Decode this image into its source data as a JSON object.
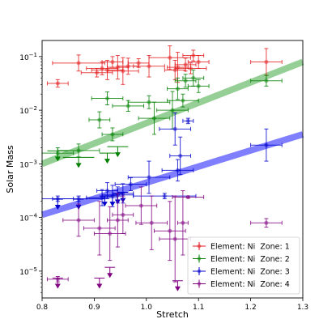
{
  "chart_data": {
    "type": "scatter",
    "xlabel": "Stretch",
    "ylabel": "Solar Mass",
    "xlim": [
      0.8,
      1.3
    ],
    "ylim_log10": [
      -5.5,
      -0.7
    ],
    "yscale": "log",
    "x_ticks": [
      {
        "value": 0.8,
        "label": "0.8"
      },
      {
        "value": 0.9,
        "label": "0.9"
      },
      {
        "value": 1.0,
        "label": "1.0"
      },
      {
        "value": 1.1,
        "label": "1.1"
      },
      {
        "value": 1.2,
        "label": "1.2"
      },
      {
        "value": 1.3,
        "label": "1.3"
      }
    ],
    "y_ticks": [
      {
        "exp": -5,
        "base": "10",
        "power": "−5"
      },
      {
        "exp": -4,
        "base": "10",
        "power": "−4"
      },
      {
        "exp": -3,
        "base": "10",
        "power": "−3"
      },
      {
        "exp": -2,
        "base": "10",
        "power": "−2"
      },
      {
        "exp": -1,
        "base": "10",
        "power": "−1"
      }
    ],
    "legend_position": "lower-right",
    "grid": false,
    "trend_lines": [
      {
        "color": "#2ca02c",
        "x": [
          0.8,
          1.3
        ],
        "log10_y": [
          -3.0,
          -1.1
        ]
      },
      {
        "color": "#0000ff",
        "x": [
          0.8,
          1.3
        ],
        "log10_y": [
          -3.95,
          -2.45
        ]
      }
    ],
    "series": [
      {
        "name": "Element: Ni  Zone: 1",
        "color": "#e41a1c",
        "points": [
          {
            "x": 0.83,
            "log10_y": -1.5,
            "xerr": 0.02,
            "yerr": 0.07
          },
          {
            "x": 0.87,
            "log10_y": -1.12,
            "xerr": 0.05,
            "yerr": 0.15
          },
          {
            "x": 0.905,
            "log10_y": -1.3,
            "xerr": 0.03,
            "yerr": 0.08
          },
          {
            "x": 0.915,
            "log10_y": -1.22,
            "xerr": 0.03,
            "yerr": 0.12
          },
          {
            "x": 0.925,
            "log10_y": -1.25,
            "xerr": 0.03,
            "yerr": 0.18
          },
          {
            "x": 0.935,
            "log10_y": -1.1,
            "xerr": 0.02,
            "yerr": 0.1
          },
          {
            "x": 0.945,
            "log10_y": -1.2,
            "xerr": 0.02,
            "yerr": 0.22
          },
          {
            "x": 0.955,
            "log10_y": -1.27,
            "xerr": 0.03,
            "yerr": 0.25
          },
          {
            "x": 0.965,
            "log10_y": -1.18,
            "xerr": 0.02,
            "yerr": 0.15
          },
          {
            "x": 0.985,
            "log10_y": -1.12,
            "xerr": 0.02,
            "yerr": 0.08
          },
          {
            "x": 1.005,
            "log10_y": -1.18,
            "xerr": 0.03,
            "yerr": 0.2
          },
          {
            "x": 1.045,
            "log10_y": -1.02,
            "xerr": 0.04,
            "yerr": 0.22
          },
          {
            "x": 1.055,
            "log10_y": -1.25,
            "xerr": 0.02,
            "yerr": 0.18
          },
          {
            "x": 1.06,
            "log10_y": -1.2,
            "xerr": 0.02,
            "yerr": 0.28
          },
          {
            "x": 1.075,
            "log10_y": -1.15,
            "xerr": 0.02,
            "yerr": 0.12
          },
          {
            "x": 1.085,
            "log10_y": -1.22,
            "xerr": 0.03,
            "yerr": 0.1
          },
          {
            "x": 1.09,
            "log10_y": -0.98,
            "xerr": 0.02,
            "yerr": 0.1
          },
          {
            "x": 1.1,
            "log10_y": -1.1,
            "xerr": 0.02,
            "yerr": 0.12
          },
          {
            "x": 1.23,
            "log10_y": -1.1,
            "xerr": 0.03,
            "yerr": 0.25
          }
        ]
      },
      {
        "name": "Element: Ni  Zone: 2",
        "color": "#008000",
        "points": [
          {
            "x": 0.83,
            "log10_y": -2.8,
            "xerr": 0.03,
            "yerr": 0.1
          },
          {
            "x": 0.87,
            "log10_y": -2.75,
            "xerr": 0.04,
            "yerr": 0.12
          },
          {
            "x": 0.91,
            "log10_y": -2.18,
            "xerr": 0.02,
            "yerr": 0.15
          },
          {
            "x": 0.925,
            "log10_y": -1.78,
            "xerr": 0.03,
            "yerr": 0.12
          },
          {
            "x": 0.935,
            "log10_y": -2.45,
            "xerr": 0.02,
            "yerr": 0.12
          },
          {
            "x": 0.965,
            "log10_y": -1.92,
            "xerr": 0.03,
            "yerr": 0.1
          },
          {
            "x": 1.005,
            "log10_y": -1.85,
            "xerr": 0.04,
            "yerr": 0.12
          },
          {
            "x": 1.015,
            "log10_y": -2.15,
            "xerr": 0.03,
            "yerr": 0.3
          },
          {
            "x": 1.05,
            "log10_y": -2.0,
            "xerr": 0.03,
            "yerr": 0.35
          },
          {
            "x": 1.06,
            "log10_y": -1.6,
            "xerr": 0.02,
            "yerr": 0.2
          },
          {
            "x": 1.07,
            "log10_y": -1.82,
            "xerr": 0.03,
            "yerr": 0.12
          },
          {
            "x": 1.075,
            "log10_y": -1.45,
            "xerr": 0.02,
            "yerr": 0.12
          },
          {
            "x": 1.09,
            "log10_y": -1.4,
            "xerr": 0.02,
            "yerr": 0.15
          },
          {
            "x": 1.1,
            "log10_y": -1.55,
            "xerr": 0.02,
            "yerr": 0.12
          },
          {
            "x": 1.23,
            "log10_y": -1.45,
            "xerr": 0.03,
            "yerr": 0.1
          }
        ],
        "upper_limits": [
          {
            "x": 0.83,
            "log10_y": -2.88,
            "xerr": 0.02
          },
          {
            "x": 0.87,
            "log10_y": -3.0,
            "xerr": 0.03
          },
          {
            "x": 0.925,
            "log10_y": -2.92,
            "xerr": 0.015
          },
          {
            "x": 0.945,
            "log10_y": -2.8,
            "xerr": 0.02
          }
        ]
      },
      {
        "name": "Element: Ni  Zone: 3",
        "color": "#0000cd",
        "points": [
          {
            "x": 0.83,
            "log10_y": -3.65,
            "xerr": 0.03,
            "yerr": 0.05
          },
          {
            "x": 0.87,
            "log10_y": -3.65,
            "xerr": 0.05,
            "yerr": 0.05
          },
          {
            "x": 0.915,
            "log10_y": -3.63,
            "xerr": 0.03,
            "yerr": 0.15
          },
          {
            "x": 0.925,
            "log10_y": -3.5,
            "xerr": 0.02,
            "yerr": 0.15
          },
          {
            "x": 0.935,
            "log10_y": -3.6,
            "xerr": 0.02,
            "yerr": 0.2
          },
          {
            "x": 0.945,
            "log10_y": -3.58,
            "xerr": 0.03,
            "yerr": 0.15
          },
          {
            "x": 0.955,
            "log10_y": -3.55,
            "xerr": 0.02,
            "yerr": 0.18
          },
          {
            "x": 0.97,
            "log10_y": -3.38,
            "xerr": 0.03,
            "yerr": 0.12
          },
          {
            "x": 1.005,
            "log10_y": -3.25,
            "xerr": 0.04,
            "yerr": 0.3
          },
          {
            "x": 1.035,
            "log10_y": -3.6,
            "xerr": 0.06,
            "yerr": 0.05
          },
          {
            "x": 1.055,
            "log10_y": -2.35,
            "xerr": 0.03,
            "yerr": 0.3
          },
          {
            "x": 1.06,
            "log10_y": -3.12,
            "xerr": 0.03,
            "yerr": 0.2
          },
          {
            "x": 1.065,
            "log10_y": -2.85,
            "xerr": 0.02,
            "yerr": 0.35
          },
          {
            "x": 1.08,
            "log10_y": -2.2,
            "xerr": 0.01,
            "yerr": 0.05
          },
          {
            "x": 1.23,
            "log10_y": -2.65,
            "xerr": 0.03,
            "yerr": 0.3
          }
        ],
        "upper_limits": [
          {
            "x": 0.83,
            "log10_y": -3.78,
            "xerr": 0.01
          },
          {
            "x": 0.87,
            "log10_y": -3.78,
            "xerr": 0.01
          },
          {
            "x": 0.92,
            "log10_y": -3.72,
            "xerr": 0.01
          },
          {
            "x": 0.935,
            "log10_y": -3.72,
            "xerr": 0.01
          },
          {
            "x": 0.945,
            "log10_y": -3.68,
            "xerr": 0.01
          },
          {
            "x": 0.955,
            "log10_y": -3.65,
            "xerr": 0.01
          }
        ]
      },
      {
        "name": "Element: Ni  Zone: 4",
        "color": "#800080",
        "points": [
          {
            "x": 0.83,
            "log10_y": -5.15,
            "xerr": 0.02,
            "yerr": 0.05
          },
          {
            "x": 0.87,
            "log10_y": -4.05,
            "xerr": 0.03,
            "yerr": 0.3
          },
          {
            "x": 0.91,
            "log10_y": -4.2,
            "xerr": 0.03,
            "yerr": 0.5
          },
          {
            "x": 0.93,
            "log10_y": -4.3,
            "xerr": 0.03,
            "yerr": 0.5
          },
          {
            "x": 0.945,
            "log10_y": -4.05,
            "xerr": 0.02,
            "yerr": 0.5
          },
          {
            "x": 0.955,
            "log10_y": -3.95,
            "xerr": 0.02,
            "yerr": 0.35
          },
          {
            "x": 0.99,
            "log10_y": -3.78,
            "xerr": 0.03,
            "yerr": 0.35
          },
          {
            "x": 1.01,
            "log10_y": -4.1,
            "xerr": 0.03,
            "yerr": 0.5
          },
          {
            "x": 1.045,
            "log10_y": -4.25,
            "xerr": 0.03,
            "yerr": 0.55
          },
          {
            "x": 1.055,
            "log10_y": -4.4,
            "xerr": 0.03,
            "yerr": 0.8
          },
          {
            "x": 1.07,
            "log10_y": -4.1,
            "xerr": 0.01,
            "yerr": 0.6
          },
          {
            "x": 1.08,
            "log10_y": -3.62,
            "xerr": 0.03,
            "yerr": 0.02
          },
          {
            "x": 1.23,
            "log10_y": -4.1,
            "xerr": 0.03,
            "yerr": 0.08
          }
        ],
        "upper_limits": [
          {
            "x": 0.83,
            "log10_y": -5.25,
            "xerr": 0.01
          },
          {
            "x": 0.91,
            "log10_y": -5.25,
            "xerr": 0.01
          },
          {
            "x": 0.93,
            "log10_y": -5.05,
            "xerr": 0.01
          },
          {
            "x": 1.06,
            "log10_y": -5.3,
            "xerr": 0.01
          }
        ]
      }
    ]
  }
}
